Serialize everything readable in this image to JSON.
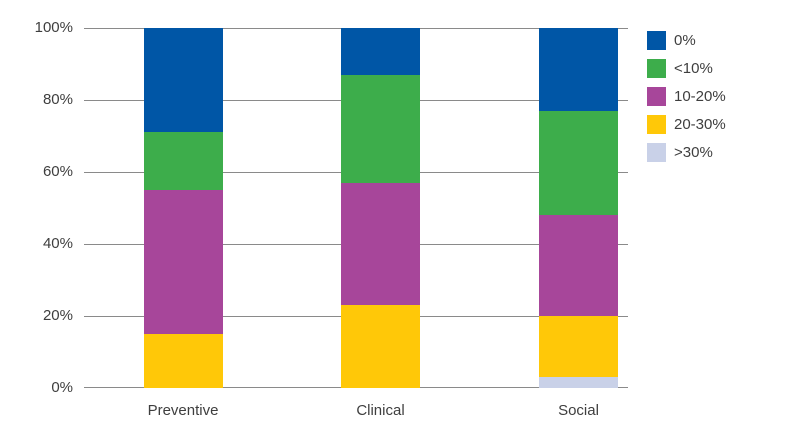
{
  "chart_data": {
    "type": "bar",
    "stacked": true,
    "percent_stacked": true,
    "categories": [
      "Preventive",
      "Clinical",
      "Social"
    ],
    "series": [
      {
        "name": "0%",
        "color": "#0056a6",
        "values": [
          29,
          13,
          23
        ]
      },
      {
        "name": "<10%",
        "color": "#3dad4b",
        "values": [
          16,
          30,
          29
        ]
      },
      {
        "name": "10-20%",
        "color": "#a7469a",
        "values": [
          40,
          34,
          28
        ]
      },
      {
        "name": "20-30%",
        "color": "#ffc808",
        "values": [
          15,
          23,
          17
        ]
      },
      {
        "name": ">30%",
        "color": "#c9d1e8",
        "values": [
          0,
          0,
          3
        ]
      }
    ],
    "ylim": [
      0,
      100
    ],
    "ytick_labels": [
      "0%",
      "20%",
      "40%",
      "60%",
      "80%",
      "100%"
    ],
    "ytick_values": [
      0,
      20,
      40,
      60,
      80,
      100
    ],
    "grid": true,
    "legend_position": "top-right"
  },
  "style": {
    "gridline_color": "#8a8a8a",
    "text_color": "#3e3e3e",
    "background_color": "#ffffff"
  }
}
